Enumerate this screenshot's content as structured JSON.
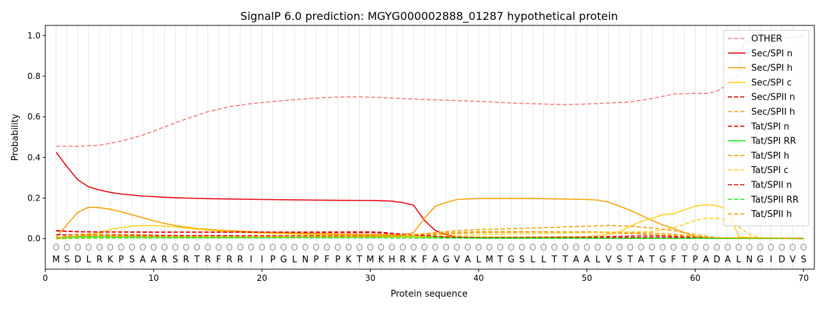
{
  "chart_data": {
    "type": "line",
    "title": "SignalP 6.0 prediction: MGYG000002888_01287 hypothetical protein",
    "xlabel": "Protein sequence",
    "ylabel": "Probability",
    "xlim": [
      0,
      71
    ],
    "ylim": [
      -0.15,
      1.05
    ],
    "x_ticks": [
      0,
      10,
      20,
      30,
      40,
      50,
      60,
      70
    ],
    "y_ticks": [
      0.0,
      0.2,
      0.4,
      0.6,
      0.8,
      1.0
    ],
    "grid": "vertical-per-residue",
    "legend_position": "top-right",
    "sequence": [
      "M",
      "S",
      "D",
      "L",
      "R",
      "K",
      "P",
      "S",
      "A",
      "A",
      "R",
      "S",
      "R",
      "T",
      "R",
      "F",
      "R",
      "R",
      "I",
      "I",
      "P",
      "G",
      "L",
      "N",
      "P",
      "F",
      "P",
      "K",
      "T",
      "M",
      "K",
      "H",
      "R",
      "K",
      "F",
      "A",
      "G",
      "V",
      "A",
      "L",
      "M",
      "T",
      "G",
      "S",
      "L",
      "L",
      "T",
      "T",
      "A",
      "A",
      "L",
      "V",
      "S",
      "T",
      "A",
      "T",
      "G",
      "F",
      "T",
      "P",
      "A",
      "D",
      "A",
      "L",
      "N",
      "G",
      "I",
      "D",
      "V",
      "S"
    ],
    "position_marker": "O",
    "series": [
      {
        "name": "OTHER",
        "color": "#f08080",
        "dash": "dashed",
        "points": [
          [
            1,
            0.455
          ],
          [
            3,
            0.455
          ],
          [
            5,
            0.46
          ],
          [
            7,
            0.48
          ],
          [
            9,
            0.51
          ],
          [
            11,
            0.55
          ],
          [
            13,
            0.59
          ],
          [
            15,
            0.625
          ],
          [
            17,
            0.65
          ],
          [
            19,
            0.665
          ],
          [
            21,
            0.675
          ],
          [
            23,
            0.685
          ],
          [
            25,
            0.692
          ],
          [
            27,
            0.697
          ],
          [
            29,
            0.698
          ],
          [
            31,
            0.695
          ],
          [
            33,
            0.69
          ],
          [
            35,
            0.685
          ],
          [
            37,
            0.682
          ],
          [
            40,
            0.676
          ],
          [
            43,
            0.668
          ],
          [
            46,
            0.663
          ],
          [
            48,
            0.66
          ],
          [
            50,
            0.663
          ],
          [
            52,
            0.668
          ],
          [
            54,
            0.673
          ],
          [
            56,
            0.69
          ],
          [
            58,
            0.712
          ],
          [
            60,
            0.715
          ],
          [
            61,
            0.715
          ],
          [
            62,
            0.725
          ],
          [
            63,
            0.76
          ],
          [
            64,
            0.81
          ],
          [
            64.5,
            0.97
          ],
          [
            70,
            0.995
          ]
        ]
      },
      {
        "name": "Sec/SPI n",
        "color": "#e8000b",
        "dash": "solid",
        "points": [
          [
            1,
            0.425
          ],
          [
            2,
            0.355
          ],
          [
            3,
            0.29
          ],
          [
            4,
            0.255
          ],
          [
            5,
            0.24
          ],
          [
            6,
            0.228
          ],
          [
            7,
            0.22
          ],
          [
            9,
            0.21
          ],
          [
            11,
            0.204
          ],
          [
            13,
            0.2
          ],
          [
            15,
            0.197
          ],
          [
            20,
            0.193
          ],
          [
            25,
            0.19
          ],
          [
            30,
            0.188
          ],
          [
            31,
            0.187
          ],
          [
            32,
            0.185
          ],
          [
            33,
            0.178
          ],
          [
            34,
            0.165
          ],
          [
            35,
            0.09
          ],
          [
            36,
            0.04
          ],
          [
            37,
            0.02
          ],
          [
            38,
            0.008
          ],
          [
            40,
            0.004
          ],
          [
            45,
            0.003
          ],
          [
            70,
            0.002
          ]
        ]
      },
      {
        "name": "Sec/SPI h",
        "color": "#f5a000",
        "dash": "solid",
        "points": [
          [
            1,
            0.005
          ],
          [
            2,
            0.07
          ],
          [
            3,
            0.13
          ],
          [
            4,
            0.155
          ],
          [
            5,
            0.153
          ],
          [
            6,
            0.145
          ],
          [
            7,
            0.133
          ],
          [
            8,
            0.118
          ],
          [
            9,
            0.103
          ],
          [
            10,
            0.088
          ],
          [
            11,
            0.075
          ],
          [
            12,
            0.065
          ],
          [
            13,
            0.057
          ],
          [
            14,
            0.05
          ],
          [
            16,
            0.042
          ],
          [
            18,
            0.037
          ],
          [
            20,
            0.032
          ],
          [
            25,
            0.025
          ],
          [
            30,
            0.02
          ],
          [
            33,
            0.018
          ],
          [
            34,
            0.03
          ],
          [
            35,
            0.1
          ],
          [
            36,
            0.16
          ],
          [
            37,
            0.178
          ],
          [
            38,
            0.193
          ],
          [
            40,
            0.198
          ],
          [
            45,
            0.198
          ],
          [
            50,
            0.193
          ],
          [
            51,
            0.19
          ],
          [
            52,
            0.18
          ],
          [
            53,
            0.16
          ],
          [
            54,
            0.14
          ],
          [
            55,
            0.115
          ],
          [
            56,
            0.09
          ],
          [
            57,
            0.068
          ],
          [
            58,
            0.05
          ],
          [
            59,
            0.03
          ],
          [
            60,
            0.012
          ],
          [
            61,
            0.004
          ],
          [
            62,
            0.001
          ],
          [
            70,
            0.001
          ]
        ]
      },
      {
        "name": "Sec/SPI c",
        "color": "#ffd21e",
        "dash": "solid",
        "points": [
          [
            1,
            0.0
          ],
          [
            2,
            0.005
          ],
          [
            3,
            0.01
          ],
          [
            4,
            0.02
          ],
          [
            5,
            0.03
          ],
          [
            6,
            0.045
          ],
          [
            7,
            0.055
          ],
          [
            8,
            0.062
          ],
          [
            9,
            0.065
          ],
          [
            10,
            0.065
          ],
          [
            11,
            0.062
          ],
          [
            12,
            0.058
          ],
          [
            13,
            0.052
          ],
          [
            15,
            0.042
          ],
          [
            17,
            0.034
          ],
          [
            20,
            0.027
          ],
          [
            25,
            0.02
          ],
          [
            30,
            0.015
          ],
          [
            33,
            0.013
          ],
          [
            34,
            0.012
          ],
          [
            36,
            0.01
          ],
          [
            40,
            0.008
          ],
          [
            45,
            0.008
          ],
          [
            50,
            0.01
          ],
          [
            52,
            0.02
          ],
          [
            53,
            0.035
          ],
          [
            54,
            0.06
          ],
          [
            55,
            0.085
          ],
          [
            56,
            0.1
          ],
          [
            57,
            0.118
          ],
          [
            58,
            0.123
          ],
          [
            59,
            0.142
          ],
          [
            60,
            0.16
          ],
          [
            61,
            0.167
          ],
          [
            62,
            0.162
          ],
          [
            63,
            0.145
          ],
          [
            63.5,
            0.08
          ],
          [
            64,
            0.01
          ],
          [
            66,
            0.003
          ],
          [
            70,
            0.001
          ]
        ]
      },
      {
        "name": "Sec/SPII n",
        "color": "#e8000b",
        "dash": "dashed",
        "points": [
          [
            1,
            0.04
          ],
          [
            3,
            0.035
          ],
          [
            5,
            0.034
          ],
          [
            10,
            0.033
          ],
          [
            20,
            0.032
          ],
          [
            30,
            0.03
          ],
          [
            33,
            0.022
          ],
          [
            35,
            0.015
          ],
          [
            37,
            0.008
          ],
          [
            40,
            0.005
          ],
          [
            50,
            0.005
          ],
          [
            55,
            0.006
          ],
          [
            58,
            0.005
          ],
          [
            60,
            0.003
          ],
          [
            70,
            0.002
          ]
        ]
      },
      {
        "name": "Sec/SPII h",
        "color": "#f5a000",
        "dash": "dashed",
        "points": [
          [
            1,
            0.003
          ],
          [
            2,
            0.015
          ],
          [
            3,
            0.022
          ],
          [
            4,
            0.024
          ],
          [
            5,
            0.023
          ],
          [
            8,
            0.02
          ],
          [
            12,
            0.016
          ],
          [
            20,
            0.013
          ],
          [
            30,
            0.012
          ],
          [
            34,
            0.015
          ],
          [
            36,
            0.025
          ],
          [
            38,
            0.032
          ],
          [
            40,
            0.035
          ],
          [
            45,
            0.035
          ],
          [
            50,
            0.033
          ],
          [
            52,
            0.028
          ],
          [
            54,
            0.025
          ],
          [
            56,
            0.02
          ],
          [
            58,
            0.015
          ],
          [
            60,
            0.01
          ],
          [
            62,
            0.004
          ],
          [
            70,
            0.001
          ]
        ]
      },
      {
        "name": "Tat/SPI n",
        "color": "#e8000b",
        "dash": "dashed",
        "points": [
          [
            1,
            0.02
          ],
          [
            3,
            0.018
          ],
          [
            5,
            0.017
          ],
          [
            10,
            0.016
          ],
          [
            20,
            0.015
          ],
          [
            30,
            0.014
          ],
          [
            33,
            0.012
          ],
          [
            35,
            0.01
          ],
          [
            38,
            0.008
          ],
          [
            40,
            0.006
          ],
          [
            50,
            0.008
          ],
          [
            55,
            0.014
          ],
          [
            57,
            0.013
          ],
          [
            60,
            0.006
          ],
          [
            63,
            0.002
          ],
          [
            70,
            0.001
          ]
        ]
      },
      {
        "name": "Tat/SPI RR",
        "color": "#1ef01e",
        "dash": "solid",
        "points": [
          [
            1,
            0.002
          ],
          [
            2,
            0.008
          ],
          [
            3,
            0.01
          ],
          [
            5,
            0.01
          ],
          [
            10,
            0.008
          ],
          [
            20,
            0.007
          ],
          [
            30,
            0.008
          ],
          [
            33,
            0.01
          ],
          [
            35,
            0.008
          ],
          [
            38,
            0.005
          ],
          [
            40,
            0.004
          ],
          [
            70,
            0.001
          ]
        ]
      },
      {
        "name": "Tat/SPI h",
        "color": "#f5a000",
        "dash": "dashed",
        "points": [
          [
            1,
            0.002
          ],
          [
            2,
            0.015
          ],
          [
            3,
            0.018
          ],
          [
            5,
            0.016
          ],
          [
            10,
            0.012
          ],
          [
            20,
            0.01
          ],
          [
            30,
            0.01
          ],
          [
            34,
            0.014
          ],
          [
            36,
            0.02
          ],
          [
            38,
            0.025
          ],
          [
            40,
            0.03
          ],
          [
            45,
            0.033
          ],
          [
            50,
            0.034
          ],
          [
            52,
            0.033
          ],
          [
            54,
            0.03
          ],
          [
            56,
            0.028
          ],
          [
            58,
            0.022
          ],
          [
            60,
            0.012
          ],
          [
            62,
            0.004
          ],
          [
            70,
            0.001
          ]
        ]
      },
      {
        "name": "Tat/SPI c",
        "color": "#ffd21e",
        "dash": "dashed",
        "points": [
          [
            1,
            0.0
          ],
          [
            5,
            0.002
          ],
          [
            10,
            0.005
          ],
          [
            20,
            0.005
          ],
          [
            30,
            0.005
          ],
          [
            35,
            0.01
          ],
          [
            40,
            0.02
          ],
          [
            45,
            0.025
          ],
          [
            50,
            0.03
          ],
          [
            52,
            0.032
          ],
          [
            54,
            0.033
          ],
          [
            56,
            0.036
          ],
          [
            57,
            0.043
          ],
          [
            58,
            0.055
          ],
          [
            59,
            0.07
          ],
          [
            60,
            0.09
          ],
          [
            61,
            0.1
          ],
          [
            62,
            0.1
          ],
          [
            63,
            0.093
          ],
          [
            64,
            0.06
          ],
          [
            65,
            0.02
          ],
          [
            66,
            0.005
          ],
          [
            70,
            0.001
          ]
        ]
      },
      {
        "name": "Tat/SPII n",
        "color": "#e8000b",
        "dash": "dashed",
        "points": [
          [
            1,
            0.038
          ],
          [
            3,
            0.034
          ],
          [
            5,
            0.033
          ],
          [
            10,
            0.032
          ],
          [
            20,
            0.033
          ],
          [
            25,
            0.033
          ],
          [
            30,
            0.034
          ],
          [
            31,
            0.032
          ],
          [
            33,
            0.022
          ],
          [
            35,
            0.016
          ],
          [
            37,
            0.008
          ],
          [
            40,
            0.004
          ],
          [
            70,
            0.001
          ]
        ]
      },
      {
        "name": "Tat/SPII RR",
        "color": "#1ef01e",
        "dash": "dashed",
        "points": [
          [
            1,
            0.001
          ],
          [
            3,
            0.004
          ],
          [
            10,
            0.004
          ],
          [
            20,
            0.004
          ],
          [
            30,
            0.004
          ],
          [
            35,
            0.003
          ],
          [
            40,
            0.002
          ],
          [
            70,
            0.001
          ]
        ]
      },
      {
        "name": "Tat/SPII h",
        "color": "#f5a000",
        "dash": "dashed",
        "points": [
          [
            1,
            0.003
          ],
          [
            3,
            0.012
          ],
          [
            5,
            0.012
          ],
          [
            10,
            0.01
          ],
          [
            20,
            0.01
          ],
          [
            30,
            0.012
          ],
          [
            34,
            0.02
          ],
          [
            36,
            0.03
          ],
          [
            38,
            0.04
          ],
          [
            40,
            0.045
          ],
          [
            45,
            0.052
          ],
          [
            50,
            0.062
          ],
          [
            52,
            0.065
          ],
          [
            54,
            0.062
          ],
          [
            56,
            0.052
          ],
          [
            58,
            0.04
          ],
          [
            60,
            0.02
          ],
          [
            62,
            0.005
          ],
          [
            70,
            0.001
          ]
        ]
      }
    ]
  }
}
